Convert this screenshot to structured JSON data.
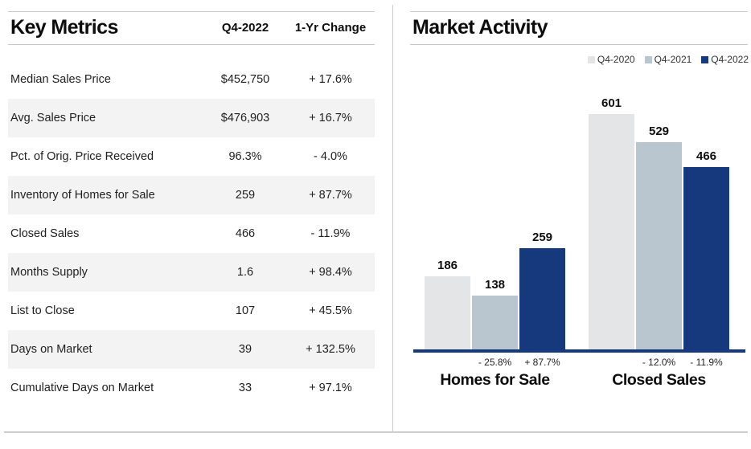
{
  "key_metrics": {
    "title": "Key Metrics",
    "columns": {
      "value": "Q4-2022",
      "change": "1-Yr Change"
    },
    "rows": [
      {
        "label": "Median Sales Price",
        "value": "$452,750",
        "change": "+ 17.6%"
      },
      {
        "label": "Avg. Sales Price",
        "value": "$476,903",
        "change": "+ 16.7%"
      },
      {
        "label": "Pct. of Orig. Price Received",
        "value": "96.3%",
        "change": "- 4.0%"
      },
      {
        "label": "Inventory of Homes for Sale",
        "value": "259",
        "change": "+ 87.7%"
      },
      {
        "label": "Closed Sales",
        "value": "466",
        "change": "- 11.9%"
      },
      {
        "label": "Months Supply",
        "value": "1.6",
        "change": "+ 98.4%"
      },
      {
        "label": "List to Close",
        "value": "107",
        "change": "+ 45.5%"
      },
      {
        "label": "Days on Market",
        "value": "39",
        "change": "+ 132.5%"
      },
      {
        "label": "Cumulative Days on Market",
        "value": "33",
        "change": "+ 97.1%"
      }
    ]
  },
  "market_activity": {
    "title": "Market Activity",
    "legend": [
      {
        "label": "Q4-2020",
        "color": "#e4e5e6"
      },
      {
        "label": "Q4-2021",
        "color": "#b9c5cf"
      },
      {
        "label": "Q4-2022",
        "color": "#16387d"
      }
    ]
  },
  "chart_data": {
    "type": "bar",
    "title": "Market Activity",
    "categories": [
      "Homes for Sale",
      "Closed Sales"
    ],
    "series": [
      {
        "name": "Q4-2020",
        "color": "#e4e5e6",
        "values": [
          186,
          601
        ]
      },
      {
        "name": "Q4-2021",
        "color": "#b9c5cf",
        "values": [
          138,
          529
        ]
      },
      {
        "name": "Q4-2022",
        "color": "#16387d",
        "values": [
          259,
          466
        ]
      }
    ],
    "pct_labels": [
      [
        "",
        "- 25.8%",
        "+ 87.7%"
      ],
      [
        "",
        "- 12.0%",
        "- 11.9%"
      ]
    ],
    "ylim": [
      0,
      640
    ],
    "grid": false,
    "legend_position": "top-right",
    "axis_color": "#16387d"
  }
}
